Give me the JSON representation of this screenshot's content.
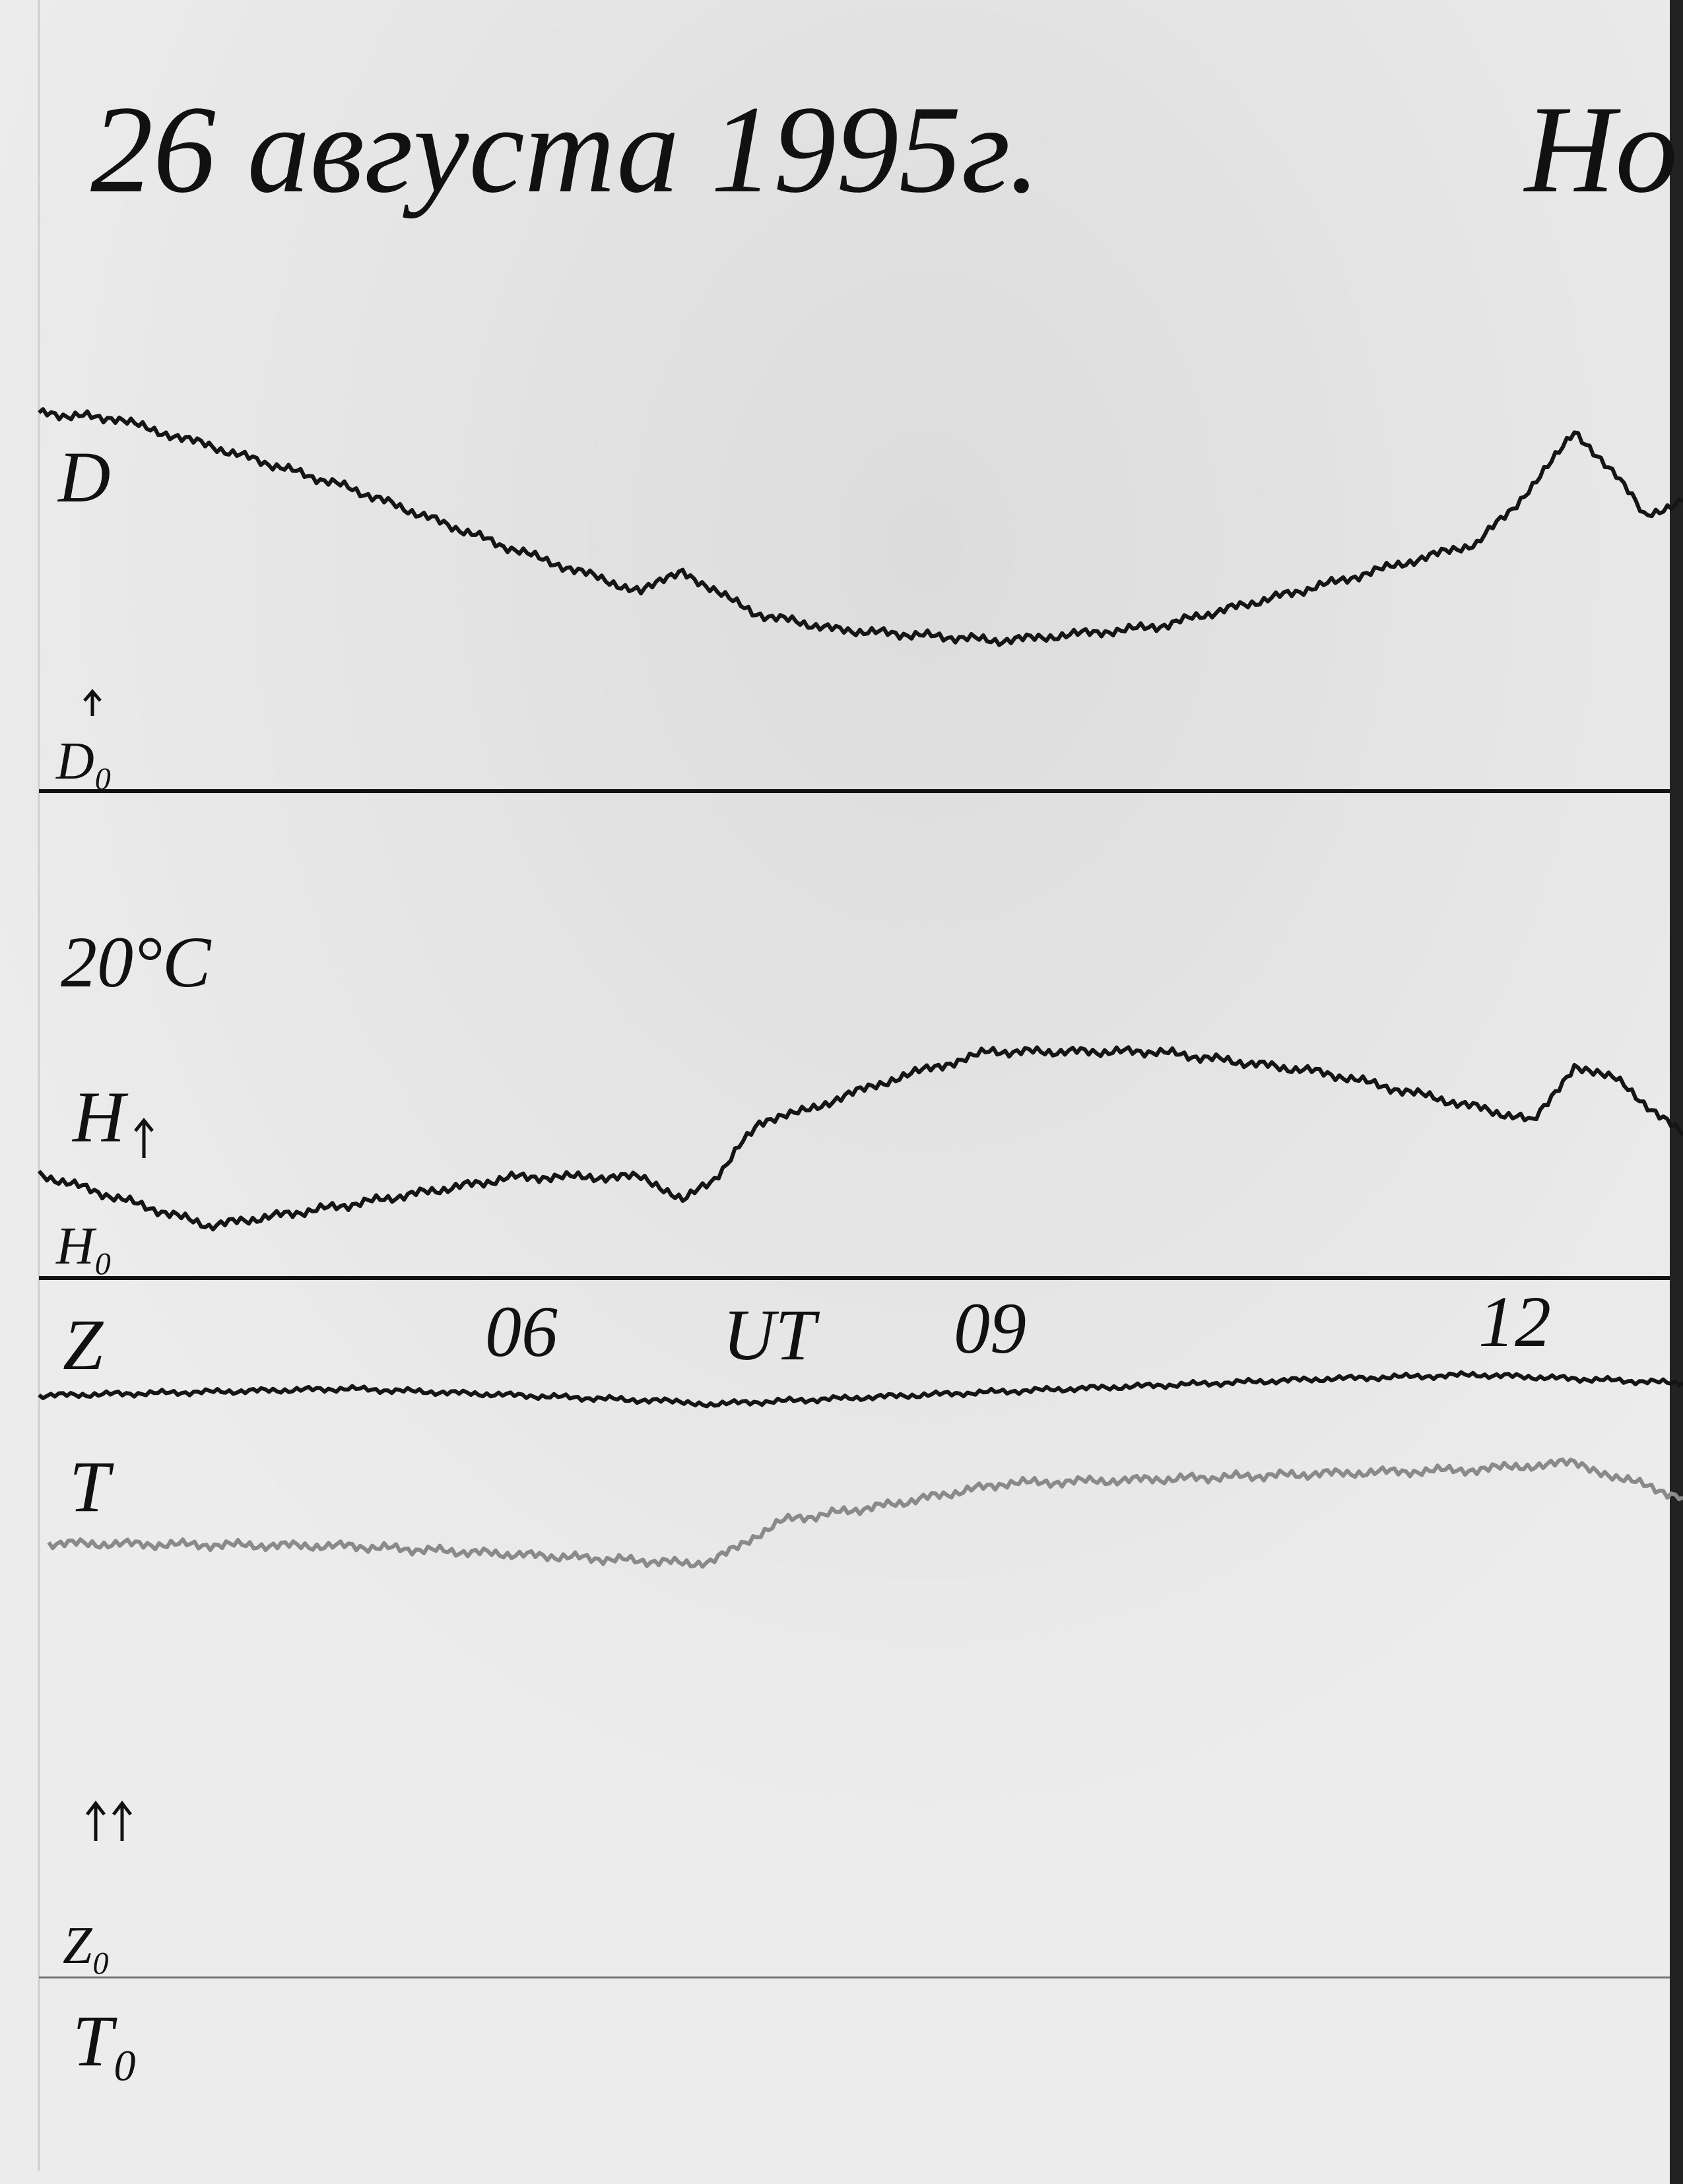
{
  "header": {
    "date": "26 августа 1995г.",
    "station": "Ho"
  },
  "labels": {
    "d": "D",
    "d0": "D₀",
    "temperature": "20°C",
    "h": "H",
    "h0": "H₀",
    "z": "Z",
    "t": "T",
    "z0": "Z₀",
    "t0": "T₀"
  },
  "time_axis": {
    "unit": "UT",
    "ticks": [
      "06",
      "09",
      "12"
    ]
  }
}
